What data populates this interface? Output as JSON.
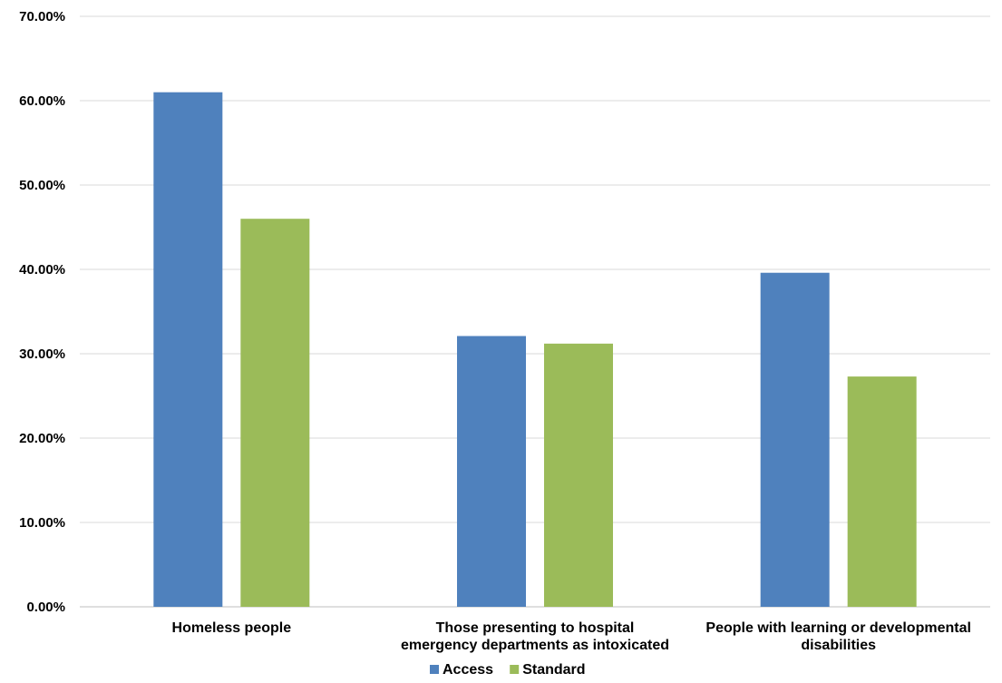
{
  "chart_data": {
    "type": "bar",
    "title": "",
    "xlabel": "",
    "ylabel": "",
    "ylim": [
      0,
      70
    ],
    "yticks": [
      "0.00%",
      "10.00%",
      "20.00%",
      "30.00%",
      "40.00%",
      "50.00%",
      "60.00%",
      "70.00%"
    ],
    "ytick_values": [
      0,
      10,
      20,
      30,
      40,
      50,
      60,
      70
    ],
    "grid": true,
    "legend_position": "bottom",
    "categories": [
      [
        "Homeless people"
      ],
      [
        "Those presenting to hospital",
        "emergency departments as intoxicated"
      ],
      [
        "People with learning or developmental",
        "disabilities"
      ]
    ],
    "series": [
      {
        "name": "Access",
        "color": "#4f81bd",
        "values": [
          61.0,
          32.1,
          39.6
        ]
      },
      {
        "name": "Standard",
        "color": "#9bbb59",
        "values": [
          46.0,
          31.2,
          27.3
        ]
      }
    ]
  }
}
